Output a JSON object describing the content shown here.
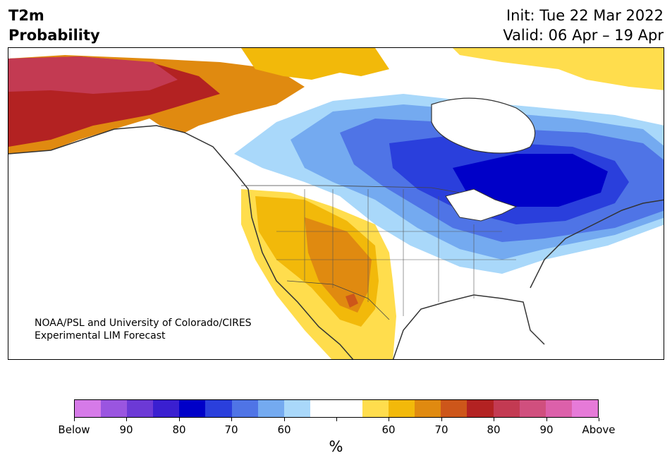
{
  "header": {
    "title_line1": "T2m",
    "title_line2": "Probability",
    "init": "Init: Tue 22 Mar 2022",
    "valid": "Valid: 06 Apr – 19 Apr"
  },
  "map": {
    "credit_line1": "NOAA/PSL and University of Colorado/CIRES",
    "credit_line2": "Experimental LIM Forecast"
  },
  "colorbar": {
    "colors": [
      "#d67ae8",
      "#9a55e0",
      "#6c39d6",
      "#3a1fd0",
      "#0000c8",
      "#2a3fdc",
      "#4f74e6",
      "#74aaf0",
      "#a9d8fa",
      "#ffffff",
      "#ffffff",
      "#ffdd4d",
      "#f2b90a",
      "#e08a10",
      "#cd561a",
      "#b32222",
      "#c33a52",
      "#d04f7e",
      "#dc60aa",
      "#e67ad8"
    ],
    "tick_labels": [
      "Below",
      "90",
      "80",
      "70",
      "60",
      "",
      "60",
      "70",
      "80",
      "90",
      "Above"
    ],
    "unit": "%"
  }
}
